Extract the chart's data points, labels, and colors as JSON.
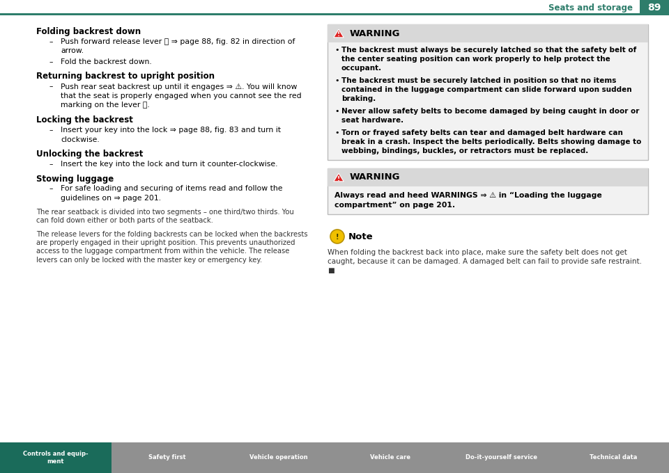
{
  "page_bg": "#ffffff",
  "header_line_color": "#2e7d6b",
  "header_text": "Seats and storage",
  "page_number": "89",
  "header_text_color": "#2e7d6b",
  "page_num_bg": "#2e7d6b",
  "page_num_color": "#ffffff",
  "footer_bg": "#909090",
  "footer_highlight_bg": "#1a6b5a",
  "footer_items": [
    "Controls and equip-\nment",
    "Safety first",
    "Vehicle operation",
    "Vehicle care",
    "Do-it-yourself service",
    "Technical data"
  ],
  "warning1_title": "WARNING",
  "warning1_bullets": [
    {
      "bold_part": "The backrest must always be securely latched so that the safety belt of the center seating position can work properly to help protect the occupant.",
      "normal_part": ""
    },
    {
      "bold_part": "The backrest must be securely latched in position so that no items contained in the luggage compartment can slide forward upon sudden braking.",
      "normal_part": ""
    },
    {
      "bold_part": "Never allow safety belts to become damaged by being caught in door or seat hardware.",
      "normal_part": ""
    },
    {
      "bold_part": "Torn or frayed safety belts can tear and damaged belt hardware can break in a crash. Inspect the belts periodically. Belts showing damage to webbing, bindings, buckles, or retractors must be replaced.",
      "normal_part": ""
    }
  ],
  "warning2_title": "WARNING",
  "warning2_text": "Always read and heed WARNINGS ⇒ ⚠ in “Loading the luggage compartment” on page 201.",
  "note_title": "Note",
  "note_text": "When folding the backrest back into place, make sure the safety belt does not get caught, because it can be damaged. A damaged belt can fail to provide safe restraint. ■"
}
